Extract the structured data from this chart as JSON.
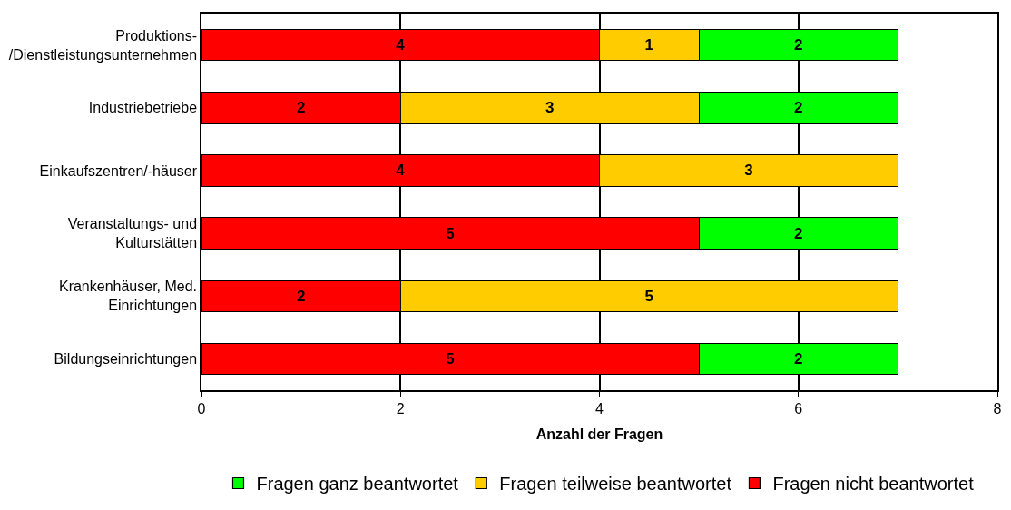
{
  "chart_data": {
    "type": "bar",
    "orientation": "horizontal",
    "stacked": true,
    "xlabel": "Anzahl der Fragen",
    "categories": [
      "Produktions-\n/Dienstleistungsunternehmen",
      "Industriebetriebe",
      "Einkaufszentren/-häuser",
      "Veranstaltungs- und\nKulturstätten",
      "Krankenhäuser, Med.\nEinrichtungen",
      "Bildungseinrichtungen"
    ],
    "series": [
      {
        "name": "Fragen nicht beantwortet",
        "color": "#ff0000",
        "values": [
          4,
          2,
          4,
          5,
          2,
          5
        ]
      },
      {
        "name": "Fragen teilweise beantwortet",
        "color": "#ffcc00",
        "values": [
          1,
          3,
          3,
          null,
          5,
          null
        ]
      },
      {
        "name": "Fragen ganz beantwortet",
        "color": "#00ff00",
        "values": [
          2,
          2,
          null,
          2,
          null,
          2
        ]
      }
    ],
    "xlim": [
      0,
      8
    ],
    "xticks": [
      0,
      2,
      4,
      6,
      8
    ],
    "grid": "x",
    "legend": "bottom",
    "data_labels": true
  }
}
